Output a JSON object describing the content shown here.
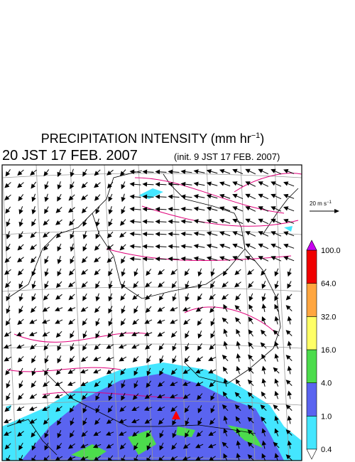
{
  "header": {
    "title": [
      "PRECIPITATION INTENSITY (mm hr",
      "−1",
      ")"
    ],
    "subtitle": "20 JST 17 FEB. 2007",
    "init": "(init. 9 JST 17 FEB. 2007)"
  },
  "scale": {
    "label": [
      "20 m s",
      "−1"
    ]
  },
  "colorbar": {
    "levels": [
      "0.4",
      "1.0",
      "4.0",
      "16.0",
      "32.0",
      "64.0",
      "100.0"
    ],
    "colors": [
      "#44e6ff",
      "#5a64f0",
      "#4cdc4c",
      "#ffff66",
      "#ffa640",
      "#f00000"
    ],
    "over_color": "#c800f0",
    "under_color": "#ffffff"
  }
}
